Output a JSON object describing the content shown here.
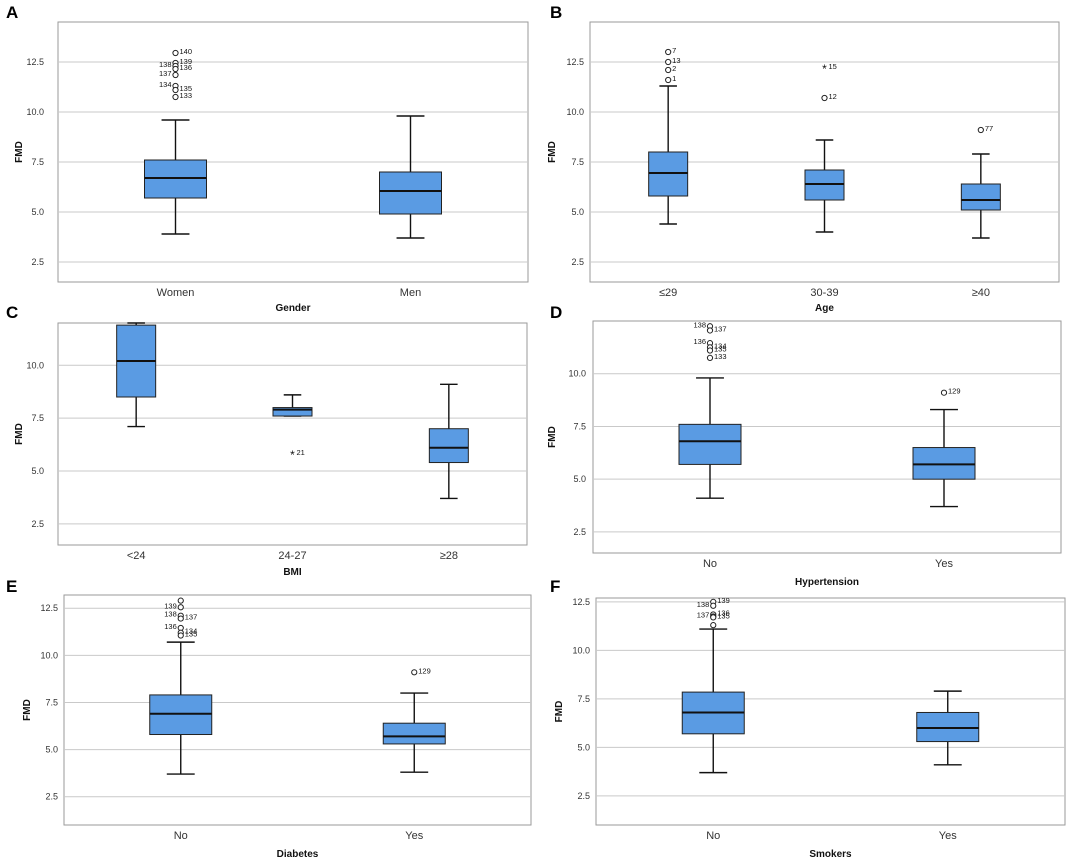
{
  "figure": {
    "background": "#ffffff",
    "box_color": "#5a9be3"
  },
  "chart_data": [
    {
      "panel": "A",
      "type": "boxplot",
      "xlabel": "Gender",
      "ylabel": "FMD",
      "ylim": [
        1.5,
        14.5
      ],
      "yticks": [
        2.5,
        5.0,
        7.5,
        10.0,
        12.5
      ],
      "ytick_labels": [
        "2.5",
        "5.0",
        "7.5",
        "10.0",
        "12.5"
      ],
      "categories": [
        "Women",
        "Men"
      ],
      "boxes": [
        {
          "category": "Women",
          "whisker_low": 3.9,
          "q1": 5.7,
          "median": 6.7,
          "q3": 7.6,
          "whisker_high": 9.6,
          "outliers": [
            {
              "value": 12.95,
              "label": "140",
              "marker": "circle",
              "label_side": "right"
            },
            {
              "value": 12.45,
              "label": "139",
              "marker": "circle",
              "label_side": "right"
            },
            {
              "value": 12.3,
              "label": "138",
              "marker": "circle",
              "label_side": "left"
            },
            {
              "value": 12.15,
              "label": "136",
              "marker": "circle",
              "label_side": "right"
            },
            {
              "value": 11.85,
              "label": "137",
              "marker": "circle",
              "label_side": "left"
            },
            {
              "value": 11.3,
              "label": "134",
              "marker": "circle",
              "label_side": "left"
            },
            {
              "value": 11.1,
              "label": "135",
              "marker": "circle",
              "label_side": "right"
            },
            {
              "value": 10.75,
              "label": "133",
              "marker": "circle",
              "label_side": "right"
            }
          ]
        },
        {
          "category": "Men",
          "whisker_low": 3.7,
          "q1": 4.9,
          "median": 6.05,
          "q3": 7.0,
          "whisker_high": 9.8,
          "outliers": []
        }
      ]
    },
    {
      "panel": "B",
      "type": "boxplot",
      "xlabel": "Age",
      "ylabel": "FMD",
      "ylim": [
        1.5,
        14.5
      ],
      "yticks": [
        2.5,
        5.0,
        7.5,
        10.0,
        12.5
      ],
      "ytick_labels": [
        "2.5",
        "5.0",
        "7.5",
        "10.0",
        "12.5"
      ],
      "categories": [
        "≤29",
        "30-39",
        "≥40"
      ],
      "boxes": [
        {
          "category": "≤29",
          "whisker_low": 4.4,
          "q1": 5.8,
          "median": 6.95,
          "q3": 8.0,
          "whisker_high": 11.3,
          "outliers": [
            {
              "value": 13.0,
              "label": "7",
              "marker": "circle",
              "label_side": "right"
            },
            {
              "value": 12.5,
              "label": "13",
              "marker": "circle",
              "label_side": "right"
            },
            {
              "value": 12.1,
              "label": "2",
              "marker": "circle",
              "label_side": "right"
            },
            {
              "value": 11.6,
              "label": "1",
              "marker": "circle",
              "label_side": "right"
            }
          ]
        },
        {
          "category": "30-39",
          "whisker_low": 4.0,
          "q1": 5.6,
          "median": 6.4,
          "q3": 7.1,
          "whisker_high": 8.6,
          "outliers": [
            {
              "value": 12.2,
              "label": "15",
              "marker": "star",
              "label_side": "right"
            },
            {
              "value": 10.7,
              "label": "12",
              "marker": "circle",
              "label_side": "right"
            }
          ]
        },
        {
          "category": "≥40",
          "whisker_low": 3.7,
          "q1": 5.1,
          "median": 5.6,
          "q3": 6.4,
          "whisker_high": 7.9,
          "outliers": [
            {
              "value": 9.1,
              "label": "77",
              "marker": "circle",
              "label_side": "right"
            }
          ]
        }
      ]
    },
    {
      "panel": "C",
      "type": "boxplot",
      "xlabel": "BMI",
      "ylabel": "FMD",
      "ylim": [
        1.5,
        12.0
      ],
      "yticks": [
        2.5,
        5.0,
        7.5,
        10.0
      ],
      "ytick_labels": [
        "2.5",
        "5.0",
        "7.5",
        "10.0"
      ],
      "categories": [
        "<24",
        "24-27",
        "≥28"
      ],
      "boxes": [
        {
          "category": "<24",
          "whisker_low": 7.1,
          "q1": 8.5,
          "median": 10.2,
          "q3": 11.9,
          "whisker_high": 12.0,
          "outliers": []
        },
        {
          "category": "24-27",
          "whisker_low": 7.6,
          "q1": 7.6,
          "median": 7.9,
          "q3": 8.0,
          "whisker_high": 8.6,
          "outliers": [
            {
              "value": 5.8,
              "label": "21",
              "marker": "star",
              "label_side": "right"
            }
          ]
        },
        {
          "category": "≥28",
          "whisker_low": 3.7,
          "q1": 5.4,
          "median": 6.1,
          "q3": 7.0,
          "whisker_high": 9.1,
          "outliers": []
        }
      ]
    },
    {
      "panel": "D",
      "type": "boxplot",
      "xlabel": "Hypertension",
      "ylabel": "FMD",
      "ylim": [
        1.5,
        12.5
      ],
      "yticks": [
        2.5,
        5.0,
        7.5,
        10.0
      ],
      "ytick_labels": [
        "2.5",
        "5.0",
        "7.5",
        "10.0"
      ],
      "categories": [
        "No",
        "Yes"
      ],
      "boxes": [
        {
          "category": "No",
          "whisker_low": 4.1,
          "q1": 5.7,
          "median": 6.8,
          "q3": 7.6,
          "whisker_high": 9.8,
          "outliers": [
            {
              "value": 12.25,
              "label": "138",
              "marker": "circle",
              "label_side": "left"
            },
            {
              "value": 12.05,
              "label": "137",
              "marker": "circle",
              "label_side": "right"
            },
            {
              "value": 11.45,
              "label": "136",
              "marker": "circle",
              "label_side": "left"
            },
            {
              "value": 11.25,
              "label": "134",
              "marker": "circle",
              "label_side": "right"
            },
            {
              "value": 11.1,
              "label": "135",
              "marker": "circle",
              "label_side": "right"
            },
            {
              "value": 10.75,
              "label": "133",
              "marker": "circle",
              "label_side": "right"
            }
          ]
        },
        {
          "category": "Yes",
          "whisker_low": 3.7,
          "q1": 5.0,
          "median": 5.7,
          "q3": 6.5,
          "whisker_high": 8.3,
          "outliers": [
            {
              "value": 9.1,
              "label": "129",
              "marker": "circle",
              "label_side": "right"
            }
          ]
        }
      ]
    },
    {
      "panel": "E",
      "type": "boxplot",
      "xlabel": "Diabetes",
      "ylabel": "FMD",
      "ylim": [
        1.0,
        13.2
      ],
      "yticks": [
        2.5,
        5.0,
        7.5,
        10.0,
        12.5
      ],
      "ytick_labels": [
        "2.5",
        "5.0",
        "7.5",
        "10.0",
        "12.5"
      ],
      "categories": [
        "No",
        "Yes"
      ],
      "boxes": [
        {
          "category": "No",
          "whisker_low": 3.7,
          "q1": 5.8,
          "median": 6.9,
          "q3": 7.9,
          "whisker_high": 10.7,
          "outliers": [
            {
              "value": 12.9,
              "label": "",
              "marker": "circle",
              "label_side": "right"
            },
            {
              "value": 12.55,
              "label": "139",
              "marker": "circle",
              "label_side": "left"
            },
            {
              "value": 12.1,
              "label": "138",
              "marker": "circle",
              "label_side": "left"
            },
            {
              "value": 11.95,
              "label": "137",
              "marker": "circle",
              "label_side": "right"
            },
            {
              "value": 11.45,
              "label": "136",
              "marker": "circle",
              "label_side": "left"
            },
            {
              "value": 11.2,
              "label": "134",
              "marker": "circle",
              "label_side": "right"
            },
            {
              "value": 11.05,
              "label": "135",
              "marker": "circle",
              "label_side": "right"
            }
          ]
        },
        {
          "category": "Yes",
          "whisker_low": 3.8,
          "q1": 5.3,
          "median": 5.7,
          "q3": 6.4,
          "whisker_high": 8.0,
          "outliers": [
            {
              "value": 9.1,
              "label": "129",
              "marker": "circle",
              "label_side": "right"
            }
          ]
        }
      ]
    },
    {
      "panel": "F",
      "type": "boxplot",
      "xlabel": "Smokers",
      "ylabel": "FMD",
      "ylim": [
        1.0,
        12.7
      ],
      "yticks": [
        2.5,
        5.0,
        7.5,
        10.0,
        12.5
      ],
      "ytick_labels": [
        "2.5",
        "5.0",
        "7.5",
        "10.0",
        "12.5"
      ],
      "categories": [
        "No",
        "Yes"
      ],
      "boxes": [
        {
          "category": "No",
          "whisker_low": 3.7,
          "q1": 5.7,
          "median": 6.8,
          "q3": 7.85,
          "whisker_high": 11.1,
          "outliers": [
            {
              "value": 12.5,
              "label": "139",
              "marker": "circle",
              "label_side": "right"
            },
            {
              "value": 12.3,
              "label": "138",
              "marker": "circle",
              "label_side": "left"
            },
            {
              "value": 11.85,
              "label": "136",
              "marker": "circle",
              "label_side": "right"
            },
            {
              "value": 11.75,
              "label": "137",
              "marker": "circle",
              "label_side": "left"
            },
            {
              "value": 11.7,
              "label": "135",
              "marker": "circle",
              "label_side": "right"
            },
            {
              "value": 11.3,
              "label": "",
              "marker": "circle",
              "label_side": "right"
            }
          ]
        },
        {
          "category": "Yes",
          "whisker_low": 4.1,
          "q1": 5.3,
          "median": 6.0,
          "q3": 6.8,
          "whisker_high": 7.9,
          "outliers": []
        }
      ]
    }
  ]
}
